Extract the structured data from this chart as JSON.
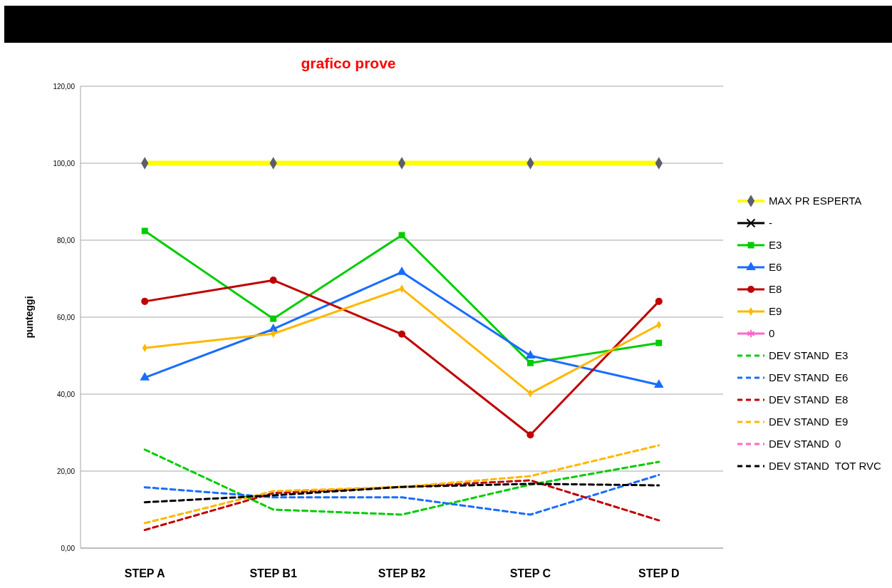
{
  "chart_data": {
    "type": "line",
    "title": "grafico prove",
    "ylabel": "punteggi",
    "categories": [
      "STEP A",
      "STEP B1",
      "STEP B2",
      "STEP C",
      "STEP D"
    ],
    "ylim": [
      0,
      120
    ],
    "yticks": [
      {
        "value": 0,
        "label": "0,00"
      },
      {
        "value": 20,
        "label": "20,00"
      },
      {
        "value": 40,
        "label": "40,00"
      },
      {
        "value": 60,
        "label": "60,00"
      },
      {
        "value": 80,
        "label": "80,00"
      },
      {
        "value": 100,
        "label": "100,00"
      },
      {
        "value": 120,
        "label": "120,00"
      }
    ],
    "grid": "y",
    "legend": "right",
    "series": [
      {
        "name": "MAX PR ESPERTA",
        "color": "#ffff00",
        "marker": "diamond",
        "line_style": "solid",
        "values": [
          100,
          100,
          100,
          100,
          100
        ]
      },
      {
        "name": "-",
        "color": "#000000",
        "marker": "cross",
        "line_style": "solid",
        "values": [
          null,
          null,
          null,
          null,
          null
        ]
      },
      {
        "name": "E3",
        "color": "#00cc00",
        "marker": "square",
        "line_style": "solid",
        "values": [
          82.4,
          59.6,
          81.3,
          48.1,
          53.3
        ]
      },
      {
        "name": "E6",
        "color": "#1a6cff",
        "marker": "triangle",
        "line_style": "solid",
        "values": [
          44.3,
          56.9,
          71.7,
          50.0,
          42.4
        ]
      },
      {
        "name": "E8",
        "color": "#c00000",
        "marker": "circle",
        "line_style": "solid",
        "values": [
          64.1,
          69.6,
          55.6,
          29.4,
          64.1
        ]
      },
      {
        "name": "E9",
        "color": "#ffb800",
        "marker": "diamond",
        "line_style": "solid",
        "values": [
          52.0,
          55.7,
          67.4,
          40.2,
          58.0
        ]
      },
      {
        "name": "0",
        "color": "#ff66cc",
        "marker": "star",
        "line_style": "solid",
        "values": [
          null,
          null,
          null,
          null,
          null
        ]
      },
      {
        "name": "DEV STAND  E3",
        "color": "#00cc00",
        "marker": "none",
        "line_style": "dashed",
        "values": [
          25.6,
          10.0,
          8.7,
          16.5,
          22.4
        ]
      },
      {
        "name": "DEV STAND  E6",
        "color": "#1a6cff",
        "marker": "none",
        "line_style": "dashed",
        "values": [
          15.8,
          13.2,
          13.2,
          8.7,
          19.0
        ]
      },
      {
        "name": "DEV STAND  E8",
        "color": "#c00000",
        "marker": "none",
        "line_style": "dashed",
        "values": [
          4.7,
          14.3,
          15.9,
          17.6,
          7.2
        ]
      },
      {
        "name": "DEV STAND  E9",
        "color": "#ffb800",
        "marker": "none",
        "line_style": "dashed",
        "values": [
          6.5,
          14.8,
          15.9,
          18.7,
          26.7
        ]
      },
      {
        "name": "DEV STAND  0",
        "color": "#ff66cc",
        "marker": "none",
        "line_style": "dashed",
        "values": [
          null,
          null,
          null,
          null,
          null
        ]
      },
      {
        "name": "DEV STAND  TOT RVC",
        "color": "#000000",
        "marker": "none",
        "line_style": "dashed",
        "values": [
          11.9,
          13.7,
          15.9,
          16.7,
          16.3
        ]
      }
    ]
  }
}
